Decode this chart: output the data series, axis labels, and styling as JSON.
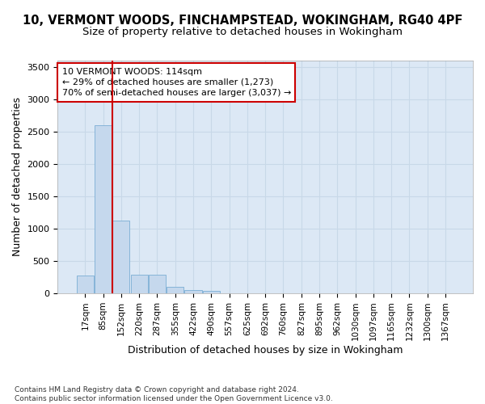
{
  "title_line1": "10, VERMONT WOODS, FINCHAMPSTEAD, WOKINGHAM, RG40 4PF",
  "title_line2": "Size of property relative to detached houses in Wokingham",
  "xlabel": "Distribution of detached houses by size in Wokingham",
  "ylabel": "Number of detached properties",
  "categories": [
    "17sqm",
    "85sqm",
    "152sqm",
    "220sqm",
    "287sqm",
    "355sqm",
    "422sqm",
    "490sqm",
    "557sqm",
    "625sqm",
    "692sqm",
    "760sqm",
    "827sqm",
    "895sqm",
    "962sqm",
    "1030sqm",
    "1097sqm",
    "1165sqm",
    "1232sqm",
    "1300sqm",
    "1367sqm"
  ],
  "values": [
    270,
    2600,
    1120,
    285,
    285,
    100,
    55,
    40,
    0,
    0,
    0,
    0,
    0,
    0,
    0,
    0,
    0,
    0,
    0,
    0,
    0
  ],
  "bar_color": "#c5d8ed",
  "bar_edge_color": "#7aadd4",
  "grid_color": "#c8d8e8",
  "background_color": "#dce8f5",
  "vline_color": "#cc0000",
  "vline_x": 1.5,
  "annotation_text": "10 VERMONT WOODS: 114sqm\n← 29% of detached houses are smaller (1,273)\n70% of semi-detached houses are larger (3,037) →",
  "annotation_box_color": "#cc0000",
  "ylim": [
    0,
    3600
  ],
  "yticks": [
    0,
    500,
    1000,
    1500,
    2000,
    2500,
    3000,
    3500
  ],
  "footer_text": "Contains HM Land Registry data © Crown copyright and database right 2024.\nContains public sector information licensed under the Open Government Licence v3.0.",
  "title_fontsize": 10.5,
  "subtitle_fontsize": 9.5,
  "tick_fontsize": 7.5,
  "label_fontsize": 9
}
